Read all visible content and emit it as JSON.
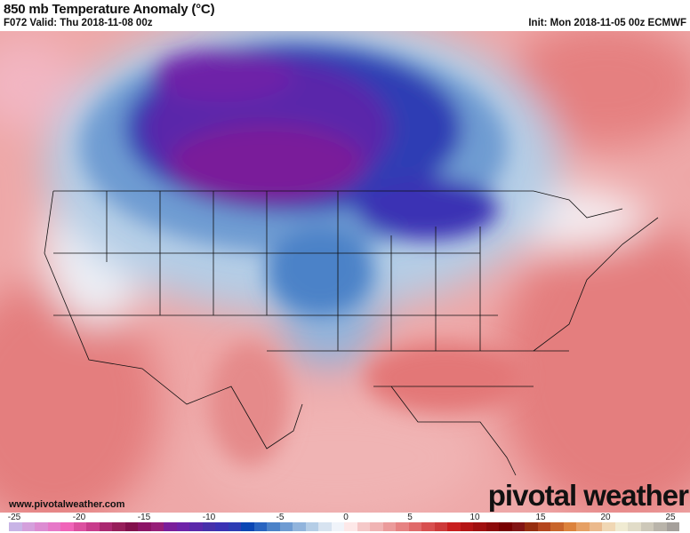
{
  "header": {
    "title": "850 mb Temperature Anomaly (°C)",
    "valid": "F072 Valid: Thu 2018-11-08 00z",
    "init": "Init: Mon 2018-11-05 00z ECMWF"
  },
  "watermark": {
    "url": "www.pivotalweather.com",
    "logo": "pivotal weather"
  },
  "colorbar": {
    "unit": "°C",
    "range": [
      -26,
      26
    ],
    "tick_labels": [
      "-25",
      "-20",
      "-15",
      "-10",
      "-5",
      "0",
      "5",
      "10",
      "15",
      "20",
      "25"
    ],
    "colors": [
      "#c8b4e6",
      "#d4a0dc",
      "#dc8cd2",
      "#e678c8",
      "#f064b9",
      "#dc50a0",
      "#c83c8c",
      "#aa2870",
      "#961e5a",
      "#82104c",
      "#8c1466",
      "#961e78",
      "#7a1e9a",
      "#6e22a8",
      "#5a28aa",
      "#4630aa",
      "#3a32b4",
      "#2d3cb4",
      "#0a46b4",
      "#2864c0",
      "#4b82c8",
      "#6e9bd2",
      "#91b4dc",
      "#b4cde6",
      "#d7e3f0",
      "#f0f4fa",
      "#fde8e8",
      "#f5c8c8",
      "#f0b4b4",
      "#eb9b9b",
      "#e68282",
      "#e06a6a",
      "#d85050",
      "#cd3a3a",
      "#c81e1e",
      "#b41414",
      "#a00f0f",
      "#8c0a0a",
      "#780000",
      "#821414",
      "#962d0f",
      "#b4461e",
      "#c8642a",
      "#dc823c",
      "#e6a064",
      "#ebb98c",
      "#f0d7b4",
      "#f0ebd2",
      "#e1dcc8",
      "#cdc8b9",
      "#b9b4aa",
      "#a5a09b"
    ]
  }
}
